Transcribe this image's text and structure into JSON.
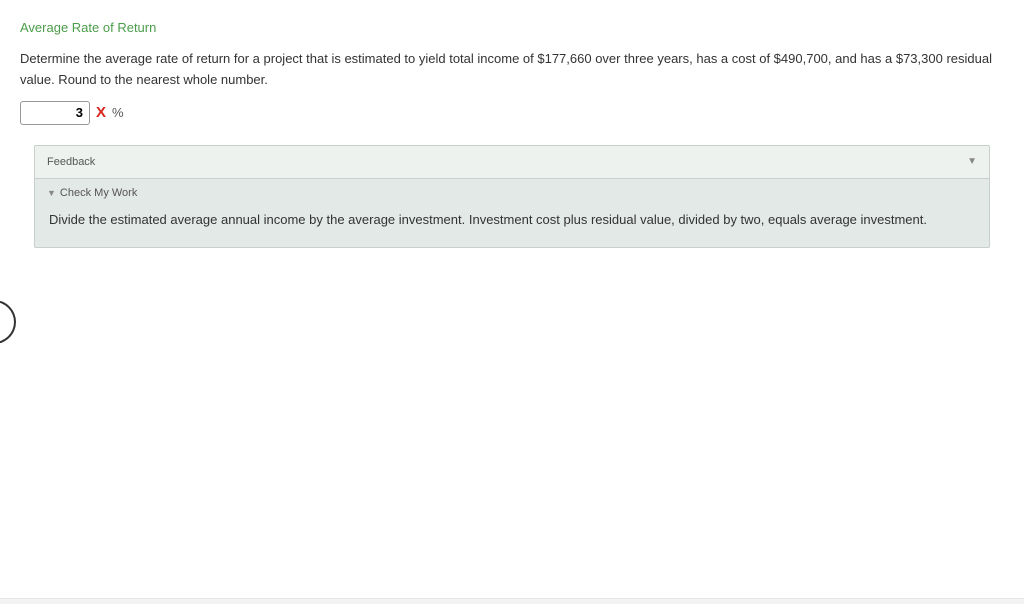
{
  "title": "Average Rate of Return",
  "question": "Determine the average rate of return for a project that is estimated to yield total income of $177,660 over three years, has a cost of $490,700, and has a $73,300 residual value. Round to the nearest whole number.",
  "answer": {
    "value": "3",
    "mark_symbol": "X",
    "unit": "%"
  },
  "feedback": {
    "header": "Feedback",
    "collapse_glyph": "▼",
    "check_label": "Check My Work",
    "check_glyph": "▼",
    "body": "Divide the estimated average annual income by the average investment. Investment cost plus residual value, divided by two, equals average investment."
  },
  "colors": {
    "title": "#4a9d4a",
    "wrong": "#d9251c",
    "panel_bg": "#e3e9e6",
    "panel_border": "#c9d0cc"
  }
}
